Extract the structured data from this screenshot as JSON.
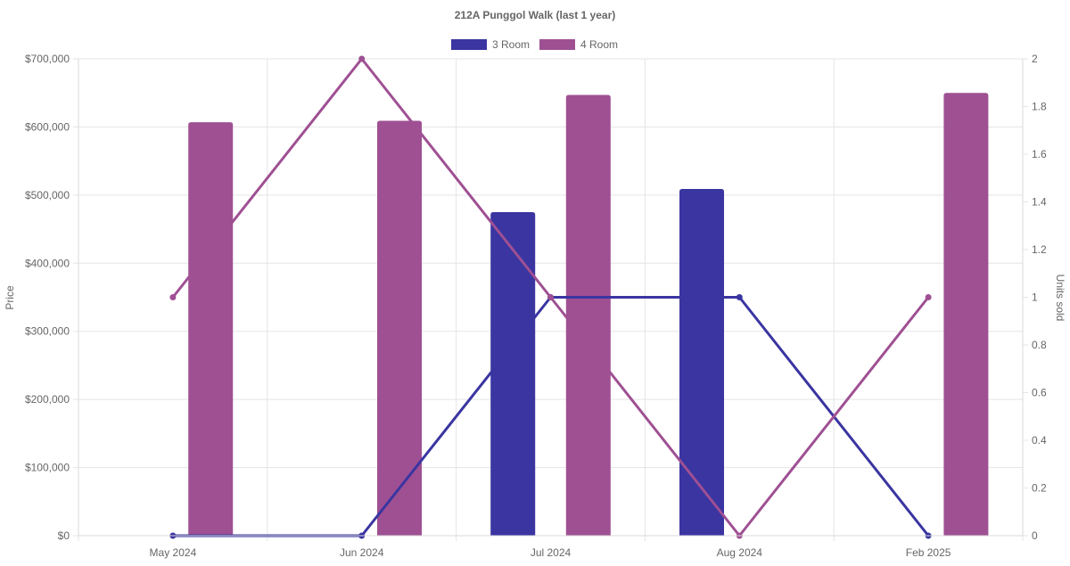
{
  "chart_data": {
    "type": "bar",
    "title": "212A Punggol Walk (last 1 year)",
    "categories": [
      "May 2024",
      "Jun 2024",
      "Jul 2024",
      "Aug 2024",
      "Feb 2025"
    ],
    "ylabel": "Price",
    "y2label": "Units sold",
    "ylim": [
      0,
      700000
    ],
    "y2lim": [
      0,
      2
    ],
    "yticks": [
      "$0",
      "$100,000",
      "$200,000",
      "$300,000",
      "$400,000",
      "$500,000",
      "$600,000",
      "$700,000"
    ],
    "y2ticks": [
      "0",
      "0.2",
      "0.4",
      "0.6",
      "0.8",
      "1",
      "1.2",
      "1.4",
      "1.6",
      "1.8",
      "2"
    ],
    "grid": true,
    "legend_position": "top",
    "legend": [
      {
        "name": "3 Room",
        "color": "#3a35a1"
      },
      {
        "name": "4 Room",
        "color": "#9f5093"
      }
    ],
    "series": [
      {
        "name": "3 Room",
        "kind": "bar",
        "axis": "price",
        "color": "#3a35a1",
        "values": [
          null,
          null,
          475000,
          509000,
          null
        ]
      },
      {
        "name": "4 Room",
        "kind": "bar",
        "axis": "price",
        "color": "#9f5093",
        "values": [
          607000,
          609000,
          647000,
          null,
          650000
        ]
      },
      {
        "name": "3 Room",
        "kind": "line",
        "axis": "units",
        "color": "#3a35a1",
        "values": [
          0,
          0,
          1,
          1,
          0
        ]
      },
      {
        "name": "4 Room",
        "kind": "line",
        "axis": "units",
        "color": "#9f5093",
        "values": [
          1,
          2,
          1,
          0,
          1
        ]
      }
    ]
  }
}
